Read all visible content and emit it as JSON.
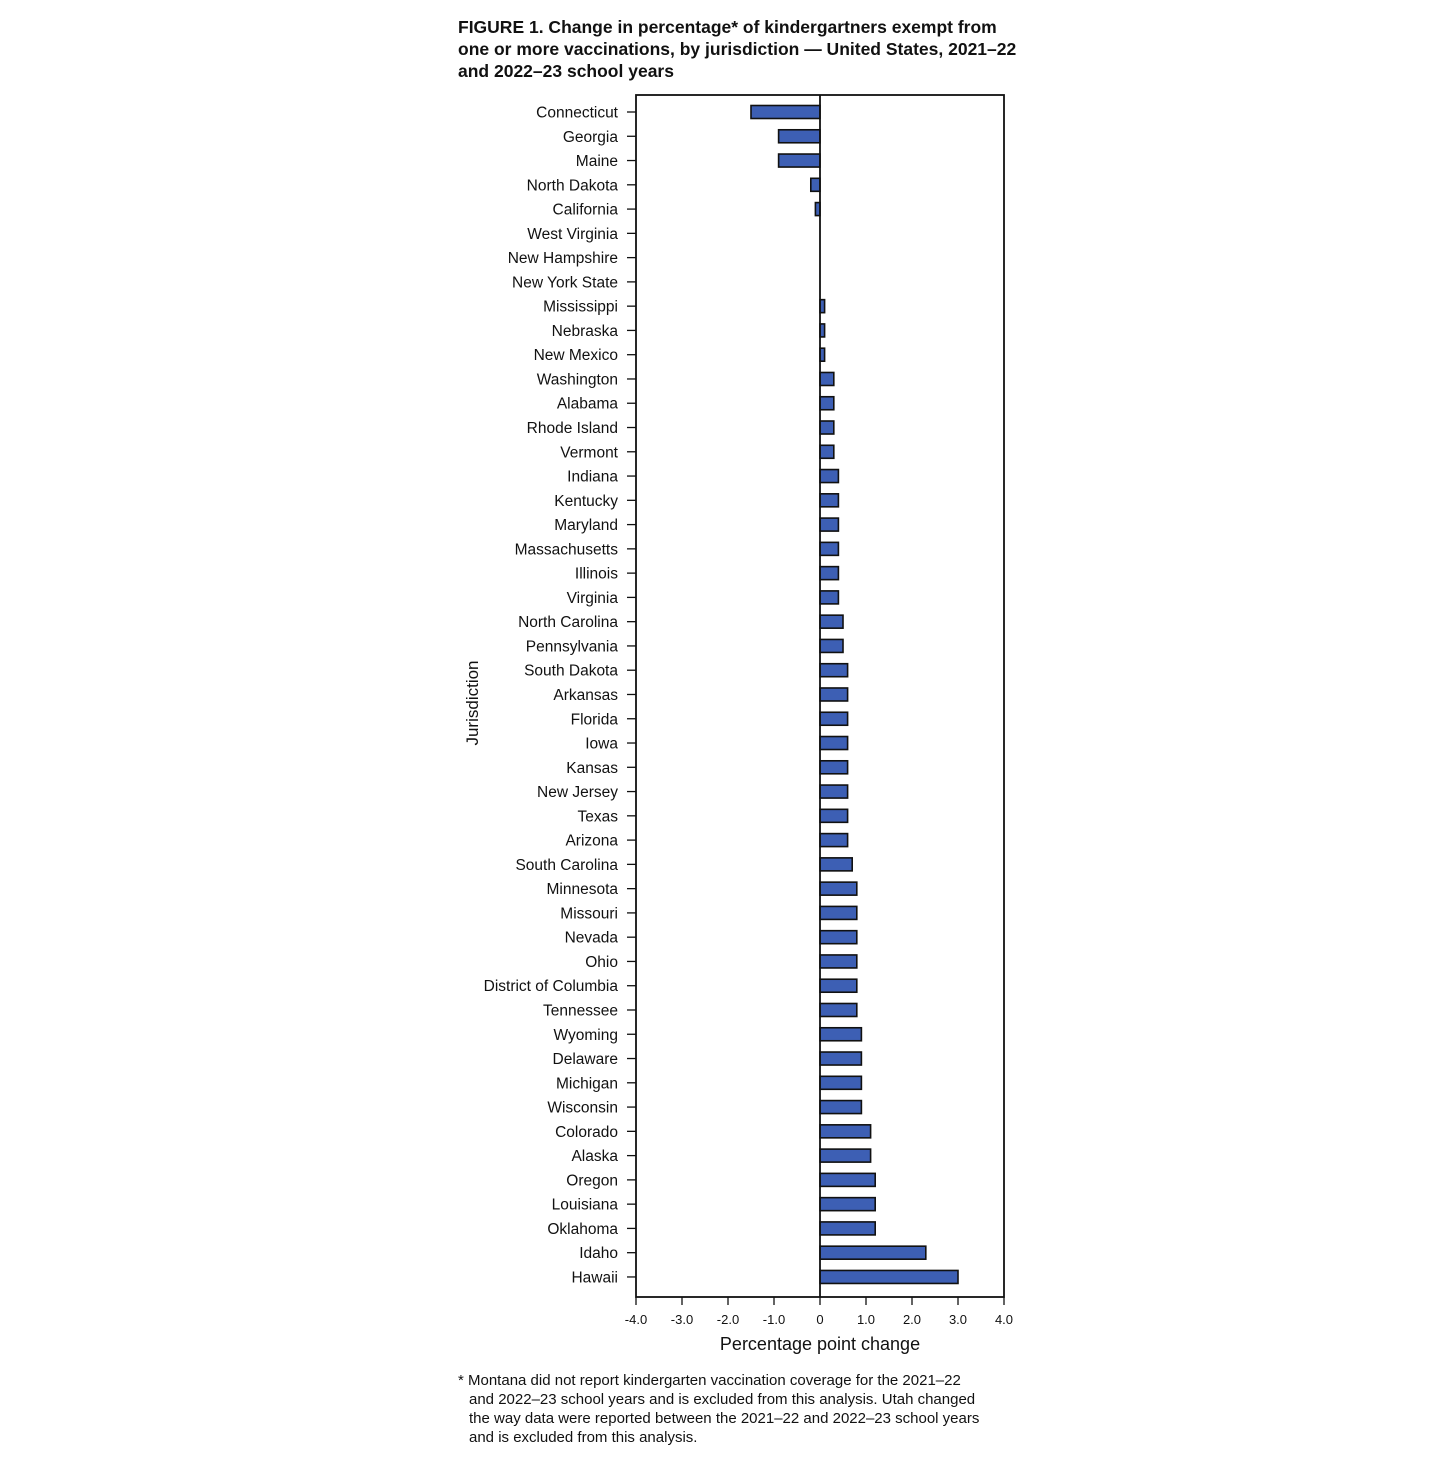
{
  "figure": {
    "title_lines": [
      "FIGURE 1. Change in percentage* of kindergartners exempt from",
      "one or more vaccinations, by jurisdiction — United States, 2021–22",
      "and 2022–23 school years"
    ],
    "footnote_lines": [
      "* Montana did not report kindergarten vaccination coverage for the 2021–22",
      "and 2022–23 school years and is excluded from this analysis. Utah changed",
      "the way data were reported between the 2021–22 and 2022–23 school years",
      "and is excluded from this analysis."
    ]
  },
  "chart_data": {
    "type": "bar",
    "orientation": "horizontal",
    "title": "FIGURE 1. Change in percentage* of kindergartners exempt from one or more vaccinations, by jurisdiction — United States, 2021–22 and 2022–23 school years",
    "xlabel": "Percentage point change",
    "ylabel": "Jurisdiction",
    "xlim": [
      -4.0,
      4.0
    ],
    "xticks": [
      "-4.0",
      "-3.0",
      "-2.0",
      "-1.0",
      "0",
      "1.0",
      "2.0",
      "3.0",
      "4.0"
    ],
    "grid": false,
    "bar_color": "#3d5fb4",
    "categories": [
      "Connecticut",
      "Georgia",
      "Maine",
      "North Dakota",
      "California",
      "West Virginia",
      "New Hampshire",
      "New York State",
      "Mississippi",
      "Nebraska",
      "New Mexico",
      "Washington",
      "Alabama",
      "Rhode Island",
      "Vermont",
      "Indiana",
      "Kentucky",
      "Maryland",
      "Massachusetts",
      "Illinois",
      "Virginia",
      "North Carolina",
      "Pennsylvania",
      "South Dakota",
      "Arkansas",
      "Florida",
      "Iowa",
      "Kansas",
      "New Jersey",
      "Texas",
      "Arizona",
      "South Carolina",
      "Minnesota",
      "Missouri",
      "Nevada",
      "Ohio",
      "District of Columbia",
      "Tennessee",
      "Wyoming",
      "Delaware",
      "Michigan",
      "Wisconsin",
      "Colorado",
      "Alaska",
      "Oregon",
      "Louisiana",
      "Oklahoma",
      "Idaho",
      "Hawaii"
    ],
    "values": [
      -1.5,
      -0.9,
      -0.9,
      -0.2,
      -0.1,
      0,
      0,
      0,
      0.1,
      0.1,
      0.1,
      0.3,
      0.3,
      0.3,
      0.3,
      0.4,
      0.4,
      0.4,
      0.4,
      0.4,
      0.4,
      0.5,
      0.5,
      0.6,
      0.6,
      0.6,
      0.6,
      0.6,
      0.6,
      0.6,
      0.6,
      0.7,
      0.8,
      0.8,
      0.8,
      0.8,
      0.8,
      0.8,
      0.9,
      0.9,
      0.9,
      0.9,
      1.1,
      1.1,
      1.2,
      1.2,
      1.2,
      2.3,
      3.0
    ]
  }
}
